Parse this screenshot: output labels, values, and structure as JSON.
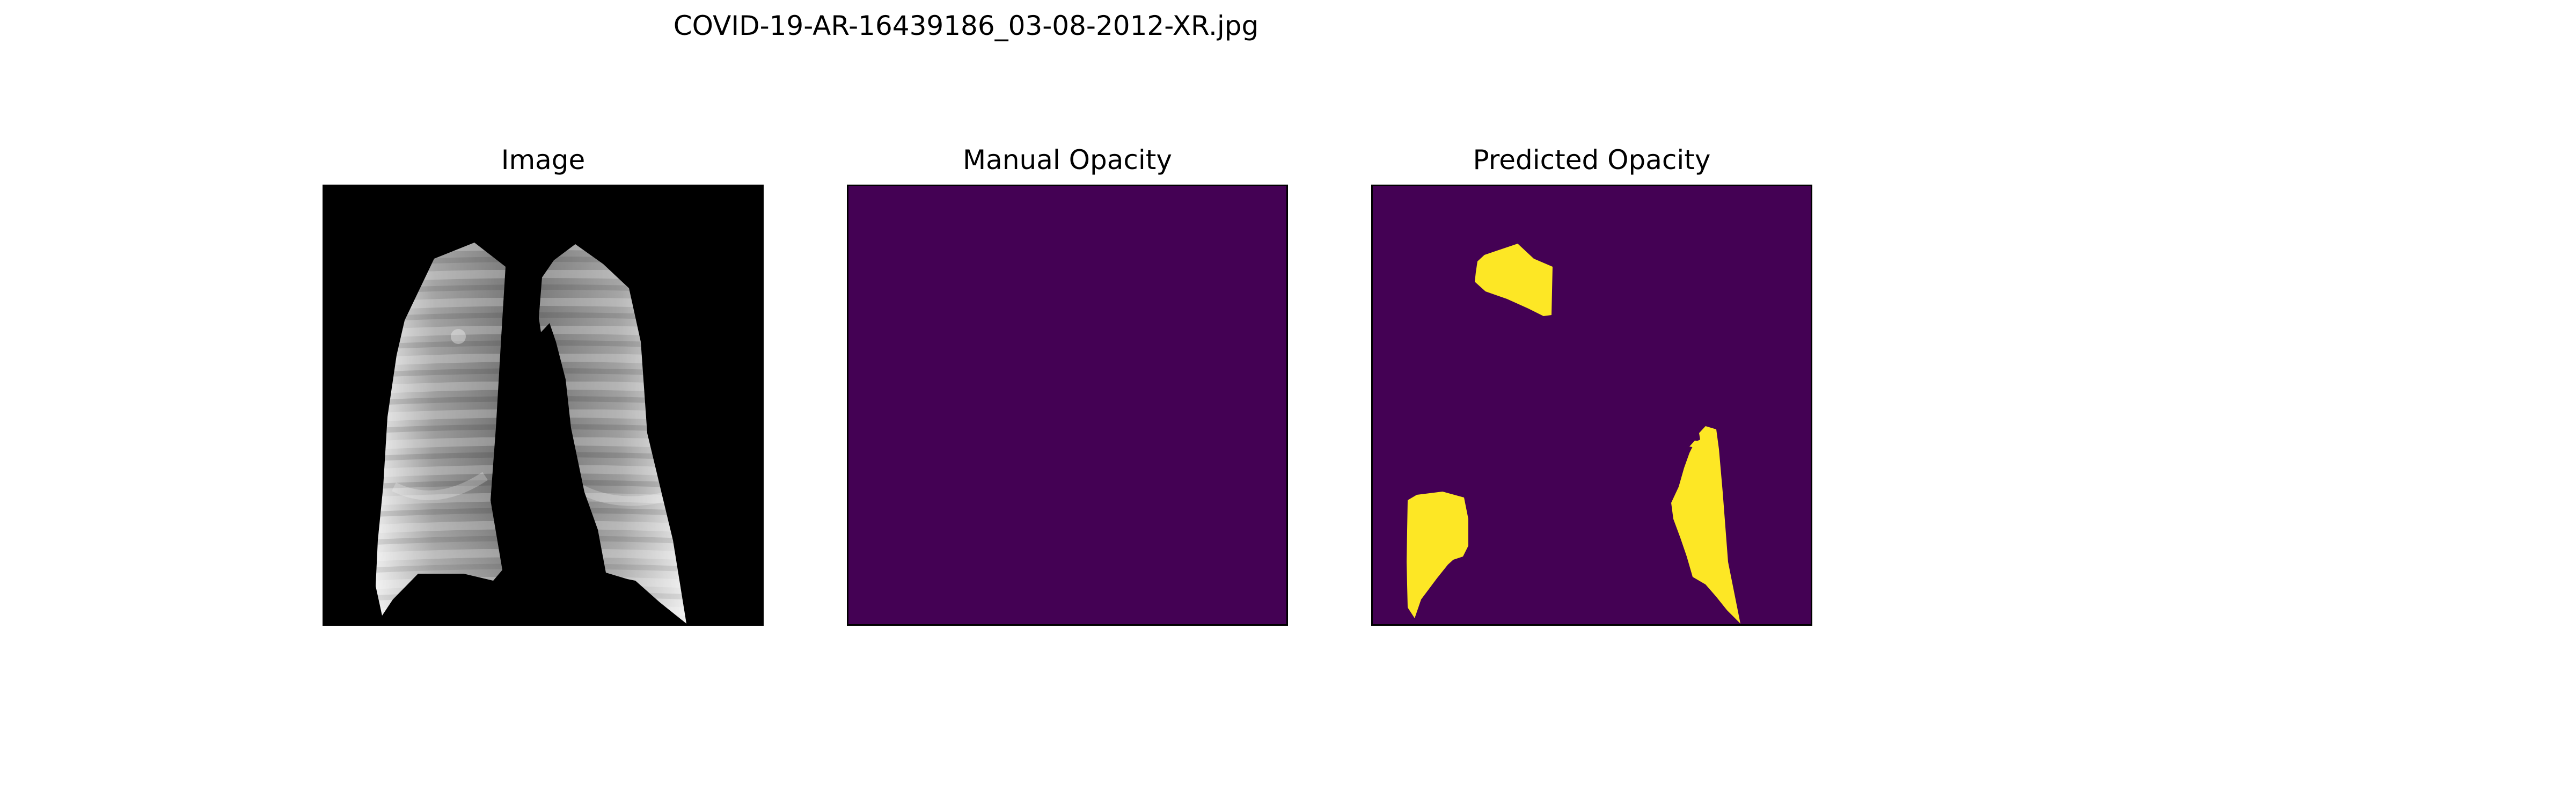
{
  "figure": {
    "suptitle": "COVID-19-AR-16439186_03-08-2012-XR.jpg"
  },
  "panels": [
    {
      "title": "Image",
      "content": "grayscale chest x-ray, lungs segmented on black background"
    },
    {
      "title": "Manual Opacity",
      "content": "empty mask"
    },
    {
      "title": "Predicted Opacity",
      "content": "predicted opacity regions"
    }
  ],
  "colors": {
    "background": "#ffffff",
    "image_background": "#000000",
    "mask_background": "#440154",
    "mask_foreground": "#fde725"
  }
}
